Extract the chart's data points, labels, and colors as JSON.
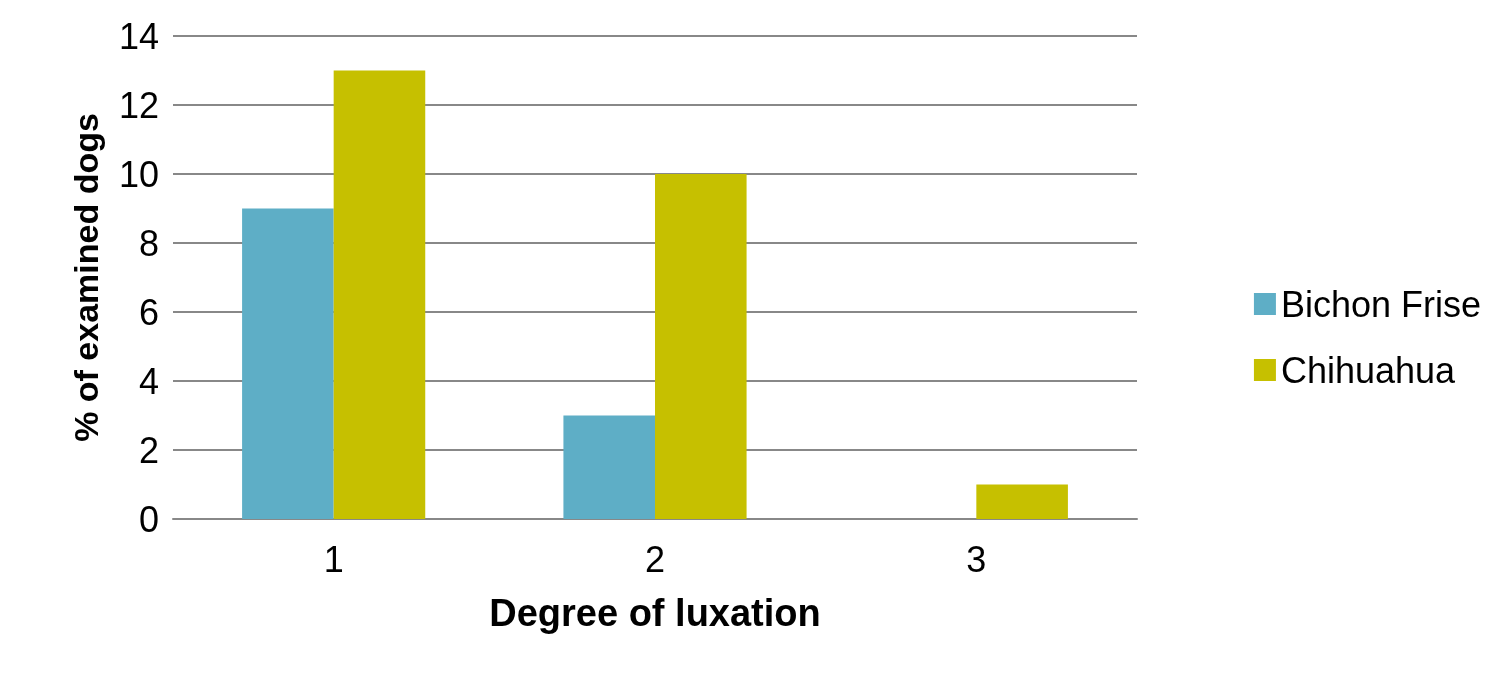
{
  "chart_data": {
    "type": "bar",
    "xlabel": "Degree of luxation",
    "ylabel": "% of examined dogs",
    "categories": [
      "1",
      "2",
      "3"
    ],
    "series": [
      {
        "name": "Bichon Frise",
        "color": "#5eaec6",
        "values": [
          9,
          3,
          0
        ]
      },
      {
        "name": "Chihuahua",
        "color": "#c6c000",
        "values": [
          13,
          10,
          1
        ]
      }
    ],
    "ylim": [
      0,
      14
    ],
    "yticks": [
      0,
      2,
      4,
      6,
      8,
      10,
      12,
      14
    ],
    "grid": "y",
    "legend": "right"
  }
}
